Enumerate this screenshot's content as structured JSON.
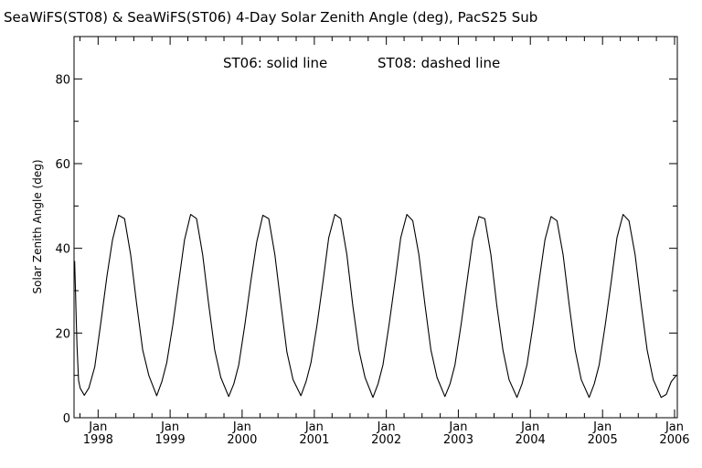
{
  "chart_data": {
    "type": "line",
    "title": "SeaWiFS(ST08) & SeaWiFS(ST06) 4-Day Solar Zenith Angle (deg), PacS25 Sub",
    "annotation_left": "ST06: solid line",
    "annotation_right": "ST08: dashed line",
    "ylabel": "Solar Zenith Angle (deg)",
    "xlabel": "",
    "ylim": [
      0,
      90
    ],
    "y_ticks": [
      "0",
      "20",
      "40",
      "60",
      "80"
    ],
    "xlim": [
      "1997-09-01",
      "2006-01-15"
    ],
    "x_ticks": [
      {
        "date": "1998-01-01",
        "month": "Jan",
        "year": "1998"
      },
      {
        "date": "1999-01-01",
        "month": "Jan",
        "year": "1999"
      },
      {
        "date": "2000-01-01",
        "month": "Jan",
        "year": "2000"
      },
      {
        "date": "2001-01-01",
        "month": "Jan",
        "year": "2001"
      },
      {
        "date": "2002-01-01",
        "month": "Jan",
        "year": "2002"
      },
      {
        "date": "2003-01-01",
        "month": "Jan",
        "year": "2003"
      },
      {
        "date": "2004-01-01",
        "month": "Jan",
        "year": "2004"
      },
      {
        "date": "2005-01-01",
        "month": "Jan",
        "year": "2005"
      },
      {
        "date": "2006-01-01",
        "month": "Jan",
        "year": "2006"
      }
    ],
    "grid": false,
    "series": [
      {
        "name": "ST06",
        "style": "solid",
        "color": "#000000",
        "points": [
          [
            "1997-09-04",
            37.0
          ],
          [
            "1997-09-08",
            30.5
          ],
          [
            "1997-09-12",
            23.5
          ],
          [
            "1997-09-16",
            17.0
          ],
          [
            "1997-09-24",
            8.8
          ],
          [
            "1997-10-02",
            7.0
          ],
          [
            "1997-10-23",
            5.3
          ],
          [
            "1997-11-15",
            7.0
          ],
          [
            "1997-12-15",
            12.0
          ],
          [
            "1998-01-15",
            22.5
          ],
          [
            "1998-02-15",
            33.5
          ],
          [
            "1998-03-15",
            42.0
          ],
          [
            "1998-04-15",
            47.8
          ],
          [
            "1998-05-15",
            47.0
          ],
          [
            "1998-06-15",
            38.5
          ],
          [
            "1998-07-15",
            27.0
          ],
          [
            "1998-08-15",
            16.0
          ],
          [
            "1998-09-15",
            10.0
          ],
          [
            "1998-10-25",
            5.2
          ],
          [
            "1998-11-20",
            8.5
          ],
          [
            "1998-12-15",
            13.0
          ],
          [
            "1999-01-15",
            22.0
          ],
          [
            "1999-02-15",
            32.5
          ],
          [
            "1999-03-15",
            42.0
          ],
          [
            "1999-04-15",
            48.0
          ],
          [
            "1999-05-15",
            47.0
          ],
          [
            "1999-06-15",
            38.5
          ],
          [
            "1999-07-15",
            27.0
          ],
          [
            "1999-08-15",
            16.0
          ],
          [
            "1999-09-15",
            9.5
          ],
          [
            "1999-10-25",
            5.0
          ],
          [
            "1999-11-20",
            8.0
          ],
          [
            "1999-12-15",
            12.5
          ],
          [
            "2000-01-15",
            22.0
          ],
          [
            "2000-02-15",
            32.5
          ],
          [
            "2000-03-15",
            41.5
          ],
          [
            "2000-04-15",
            47.8
          ],
          [
            "2000-05-15",
            47.0
          ],
          [
            "2000-06-15",
            38.5
          ],
          [
            "2000-07-15",
            27.0
          ],
          [
            "2000-08-15",
            15.5
          ],
          [
            "2000-09-15",
            9.0
          ],
          [
            "2000-10-25",
            5.2
          ],
          [
            "2000-11-20",
            8.5
          ],
          [
            "2000-12-15",
            13.0
          ],
          [
            "2001-01-15",
            22.0
          ],
          [
            "2001-02-15",
            32.5
          ],
          [
            "2001-03-15",
            42.5
          ],
          [
            "2001-04-15",
            48.0
          ],
          [
            "2001-05-15",
            47.0
          ],
          [
            "2001-06-15",
            38.5
          ],
          [
            "2001-07-15",
            26.5
          ],
          [
            "2001-08-15",
            16.0
          ],
          [
            "2001-09-15",
            9.5
          ],
          [
            "2001-10-25",
            4.8
          ],
          [
            "2001-11-20",
            8.0
          ],
          [
            "2001-12-15",
            12.5
          ],
          [
            "2002-01-15",
            22.0
          ],
          [
            "2002-02-15",
            32.5
          ],
          [
            "2002-03-15",
            42.5
          ],
          [
            "2002-04-15",
            48.0
          ],
          [
            "2002-05-15",
            46.5
          ],
          [
            "2002-06-15",
            38.5
          ],
          [
            "2002-07-15",
            27.0
          ],
          [
            "2002-08-15",
            16.0
          ],
          [
            "2002-09-15",
            9.5
          ],
          [
            "2002-10-25",
            5.0
          ],
          [
            "2002-11-20",
            8.0
          ],
          [
            "2002-12-15",
            12.5
          ],
          [
            "2003-01-15",
            22.0
          ],
          [
            "2003-02-15",
            32.5
          ],
          [
            "2003-03-15",
            42.0
          ],
          [
            "2003-04-15",
            47.5
          ],
          [
            "2003-05-15",
            47.0
          ],
          [
            "2003-06-15",
            38.5
          ],
          [
            "2003-07-15",
            26.5
          ],
          [
            "2003-08-15",
            16.0
          ],
          [
            "2003-09-15",
            9.0
          ],
          [
            "2003-10-25",
            4.8
          ],
          [
            "2003-11-20",
            8.0
          ],
          [
            "2003-12-15",
            12.5
          ],
          [
            "2004-01-15",
            22.0
          ],
          [
            "2004-02-15",
            32.5
          ],
          [
            "2004-03-15",
            42.0
          ],
          [
            "2004-04-15",
            47.5
          ],
          [
            "2004-05-15",
            46.5
          ],
          [
            "2004-06-15",
            38.5
          ],
          [
            "2004-07-15",
            27.0
          ],
          [
            "2004-08-15",
            16.0
          ],
          [
            "2004-09-15",
            9.0
          ],
          [
            "2004-10-25",
            4.8
          ],
          [
            "2004-11-20",
            8.0
          ],
          [
            "2004-12-15",
            12.5
          ],
          [
            "2005-01-15",
            22.0
          ],
          [
            "2005-02-15",
            32.5
          ],
          [
            "2005-03-15",
            42.5
          ],
          [
            "2005-04-15",
            48.0
          ],
          [
            "2005-05-15",
            46.5
          ],
          [
            "2005-06-15",
            38.5
          ],
          [
            "2005-07-15",
            27.0
          ],
          [
            "2005-08-15",
            16.0
          ],
          [
            "2005-09-15",
            9.0
          ],
          [
            "2005-10-25",
            4.8
          ],
          [
            "2005-11-20",
            5.5
          ],
          [
            "2005-12-15",
            8.5
          ],
          [
            "2006-01-10",
            10.0
          ]
        ]
      },
      {
        "name": "ST08",
        "style": "dashed",
        "color": "#000000",
        "points": []
      }
    ]
  }
}
